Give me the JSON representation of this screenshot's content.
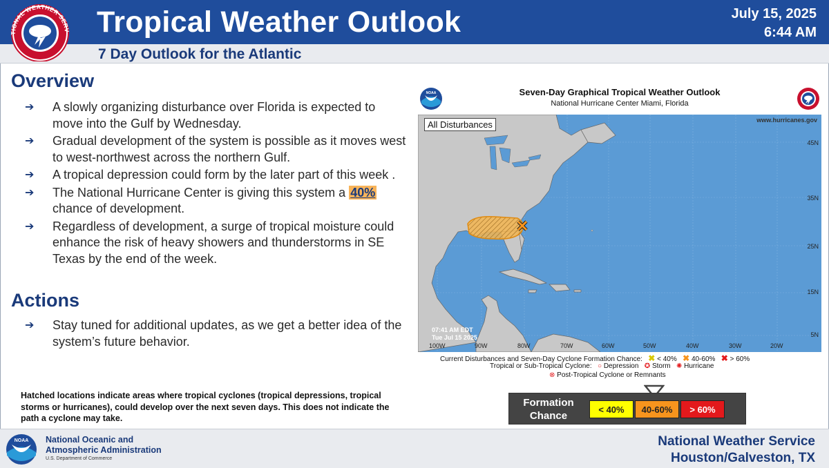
{
  "header": {
    "title": "Tropical Weather Outlook",
    "subtitle": "7 Day Outlook for the Atlantic",
    "date": "July 15, 2025",
    "time": "6:44 AM",
    "logo_text": "NATIONAL WEATHER SERVICE",
    "colors": {
      "bar": "#1f4d9c",
      "heading": "#1a3a7a",
      "highlight": "#f7b35a"
    }
  },
  "overview": {
    "heading": "Overview",
    "bullets": [
      {
        "text": "A slowly organizing disturbance over Florida is expected to move into the Gulf by Wednesday."
      },
      {
        "text": "Gradual development of the system is possible as it moves west to west-northwest across the northern Gulf."
      },
      {
        "text": "A tropical depression could form by the later part of this week ."
      },
      {
        "pre": "The National Hurricane Center is giving this system a ",
        "highlight": "40%",
        "post": " chance of development."
      },
      {
        "text": "Regardless of development, a surge of tropical moisture could enhance the risk of heavy showers and thunderstorms in SE Texas by the end of the week."
      }
    ]
  },
  "actions": {
    "heading": "Actions",
    "bullets": [
      {
        "text": "Stay tuned for additional updates, as we get a better idea of the system’s future behavior."
      }
    ]
  },
  "hatch_note": "Hatched locations indicate areas where tropical cyclones (tropical depressions, tropical storms or hurricanes), could develop over the next seven days. This does not indicate the path a cyclone may take.",
  "map": {
    "title": "Seven-Day Graphical Tropical Weather Outlook",
    "subtitle": "National Hurricane Center  Miami, Florida",
    "tag": "All Disturbances",
    "url": "www.hurricanes.gov",
    "timestamp_line1": "07:41 AM EDT",
    "timestamp_line2": "Tue Jul 15 2025",
    "lat_labels": [
      "45N",
      "35N",
      "25N",
      "15N",
      "5N"
    ],
    "lon_labels": [
      "100W",
      "90W",
      "80W",
      "70W",
      "60W",
      "50W",
      "40W",
      "30W",
      "20W"
    ],
    "noaa_logo_text": "NOAA",
    "colors": {
      "ocean": "#5b9bd5",
      "land": "#c8c8c8",
      "area": "#f0a030"
    }
  },
  "legend": {
    "line1_label": "Current Disturbances and Seven-Day Cyclone Formation Chance:",
    "line1_items": [
      "< 40%",
      "40-60%",
      "> 60%"
    ],
    "line2_label": "Tropical or Sub-Tropical Cyclone:",
    "line2_items": [
      "Depression",
      "Storm",
      "Hurricane"
    ],
    "line3": "Post-Tropical Cyclone or Remnants"
  },
  "formation_chance": {
    "label_line1": "Formation",
    "label_line2": "Chance",
    "low": {
      "label": "< 40%",
      "color": "#ffff00"
    },
    "mid": {
      "label": "40-60%",
      "color": "#f7941d"
    },
    "high": {
      "label": "> 60%",
      "color": "#e3191c"
    }
  },
  "footer": {
    "noaa_line1": "National Oceanic and",
    "noaa_line2": "Atmospheric Administration",
    "noaa_dept": "U.S. Department of Commerce",
    "noaa_logo_text": "NOAA",
    "office_line1": "National Weather Service",
    "office_line2": "Houston/Galveston, TX"
  }
}
